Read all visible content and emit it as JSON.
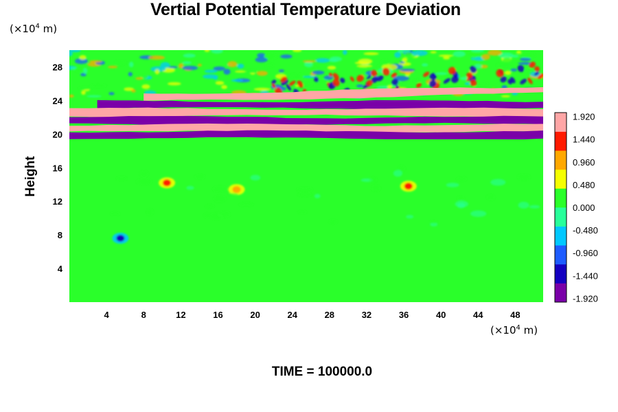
{
  "chart_data": {
    "type": "heatmap",
    "title": "Vertial Potential Temperature Deviation",
    "xlabel": "",
    "ylabel": "Height",
    "x_unit": {
      "prefix": "(×10",
      "exp": "4",
      "suffix": " m)"
    },
    "y_unit": {
      "prefix": "(×10",
      "exp": "4",
      "suffix": " m)"
    },
    "xlim": [
      0,
      51
    ],
    "ylim": [
      0,
      30
    ],
    "x_ticks": [
      4,
      8,
      12,
      16,
      20,
      24,
      28,
      32,
      36,
      40,
      44,
      48
    ],
    "x_tick_labels": [
      "4",
      "8",
      "12",
      "16",
      "20",
      "24",
      "28",
      "32",
      "36",
      "40",
      "44",
      "48"
    ],
    "y_ticks": [
      4,
      8,
      12,
      16,
      20,
      24,
      28
    ],
    "y_tick_labels": [
      "4",
      "8",
      "12",
      "16",
      "20",
      "24",
      "28"
    ],
    "colorbar": {
      "min": -2.0,
      "max": 2.0,
      "tick_values": [
        1.92,
        1.44,
        0.96,
        0.48,
        0.0,
        -0.48,
        -0.96,
        -1.44,
        -1.92
      ],
      "tick_labels": [
        "1.920",
        "1.440",
        "0.960",
        "0.480",
        "0.000",
        "-0.480",
        "-0.960",
        "-1.440",
        "-1.920"
      ],
      "colors": [
        "#7a00a8",
        "#1400c0",
        "#1e5cff",
        "#00c8ff",
        "#28ff9a",
        "#2aff2a",
        "#f5ff00",
        "#ffa800",
        "#ff1a00",
        "#ffa6a6"
      ]
    },
    "background_value": 0.0,
    "bands": [
      {
        "y": 24.3,
        "x0": 8,
        "x1": 51,
        "value": 1.92,
        "note": "upper tilted band"
      },
      {
        "y": 23.5,
        "x0": 3,
        "x1": 51,
        "value": -1.92
      },
      {
        "y": 22.6,
        "x0": 0,
        "x1": 51,
        "value": 1.92
      },
      {
        "y": 21.6,
        "x0": 0,
        "x1": 51,
        "value": -1.92
      },
      {
        "y": 20.7,
        "x0": 0,
        "x1": 51,
        "value": 1.92
      },
      {
        "y": 19.9,
        "x0": 0,
        "x1": 51,
        "value": -1.92
      }
    ],
    "features": [
      {
        "x": 10.5,
        "y": 14.2,
        "value": 1.44
      },
      {
        "x": 18.0,
        "y": 13.4,
        "value": 0.96
      },
      {
        "x": 36.5,
        "y": 13.8,
        "value": 1.44
      },
      {
        "x": 5.5,
        "y": 7.6,
        "value": -1.44
      }
    ]
  },
  "footer": {
    "time_label": "TIME = 100000.0"
  }
}
